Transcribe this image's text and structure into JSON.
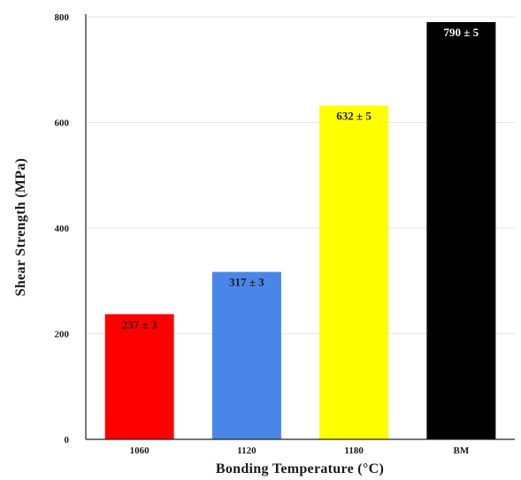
{
  "chart_data": {
    "type": "bar",
    "title": "",
    "xlabel": "Bonding Temperature (°C)",
    "ylabel": "Shear Strength (MPa)",
    "categories": [
      "1060",
      "1120",
      "1180",
      "BM"
    ],
    "values": [
      237,
      317,
      632,
      790
    ],
    "data_labels": [
      "237 ± 3",
      "317 ± 3",
      "632 ± 5",
      "790 ± 5"
    ],
    "bar_colors": [
      "#ff0000",
      "#4a86e8",
      "#ffff00",
      "#000000"
    ],
    "label_colors": [
      "#1a1a1a",
      "#1a1a1a",
      "#1a1a1a",
      "#ffffff"
    ],
    "ylim": [
      0,
      800
    ],
    "yticks": [
      0,
      200,
      400,
      600,
      800
    ],
    "ytick_labels": [
      "0",
      "200",
      "400",
      "600",
      "800"
    ],
    "grid": true,
    "legend": "none"
  }
}
